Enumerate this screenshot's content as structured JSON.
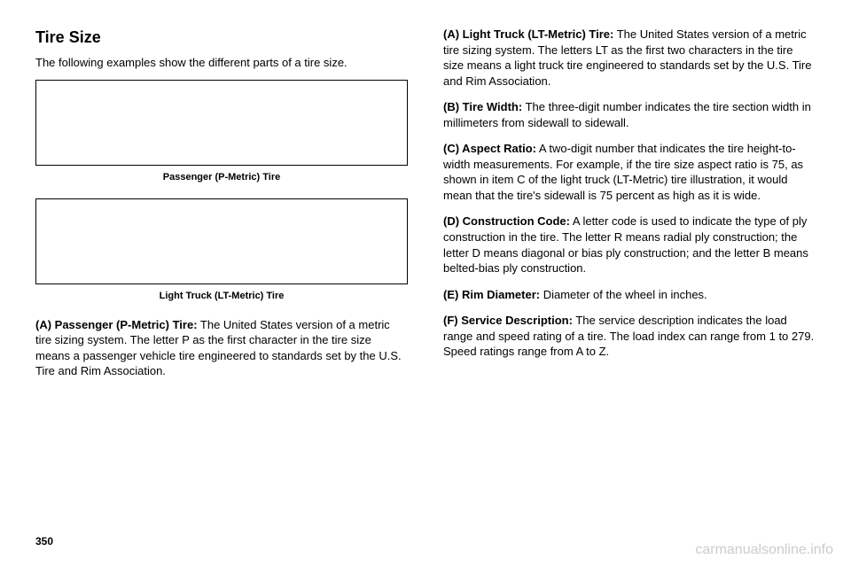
{
  "left": {
    "heading": "Tire Size",
    "intro": "The following examples show the different parts of a tire size.",
    "caption1": "Passenger (P-Metric) Tire",
    "caption2": "Light Truck (LT-Metric) Tire",
    "paraA_label": "(A) Passenger (P-Metric) Tire:",
    "paraA_text": "  The United States version of a metric tire sizing system. The letter P as the first character in the tire size means a passenger vehicle tire engineered to standards set by the U.S. Tire and Rim Association."
  },
  "right": {
    "paraA2_label": "(A) Light Truck (LT-Metric) Tire:",
    "paraA2_text": "  The United States version of a metric tire sizing system. The letters LT as the first two characters in the tire size means a light truck tire engineered to standards set by the U.S. Tire and Rim Association.",
    "paraB_label": "(B) Tire Width:",
    "paraB_text": "  The three-digit number indicates the tire section width in millimeters from sidewall to sidewall.",
    "paraC_label": "(C) Aspect Ratio:",
    "paraC_text": "  A two-digit number that indicates the tire height-to-width measurements. For example, if the tire size aspect ratio is 75, as shown in item C of the light truck (LT-Metric) tire illustration, it would mean that the tire's sidewall is 75 percent as high as it is wide.",
    "paraD_label": "(D) Construction Code:",
    "paraD_text": "  A letter code is used to indicate the type of ply construction in the tire. The letter R means radial ply construction; the letter D means diagonal or bias ply construction; and the letter B means belted-bias ply construction.",
    "paraE_label": "(E) Rim Diameter:",
    "paraE_text": "  Diameter of the wheel in inches.",
    "paraF_label": "(F) Service Description:",
    "paraF_text": "  The service description indicates the load range and speed rating of a tire. The load index can range from 1 to 279. Speed ratings range from A to Z."
  },
  "pagenum": "350",
  "watermark": "carmanualsonline.info"
}
